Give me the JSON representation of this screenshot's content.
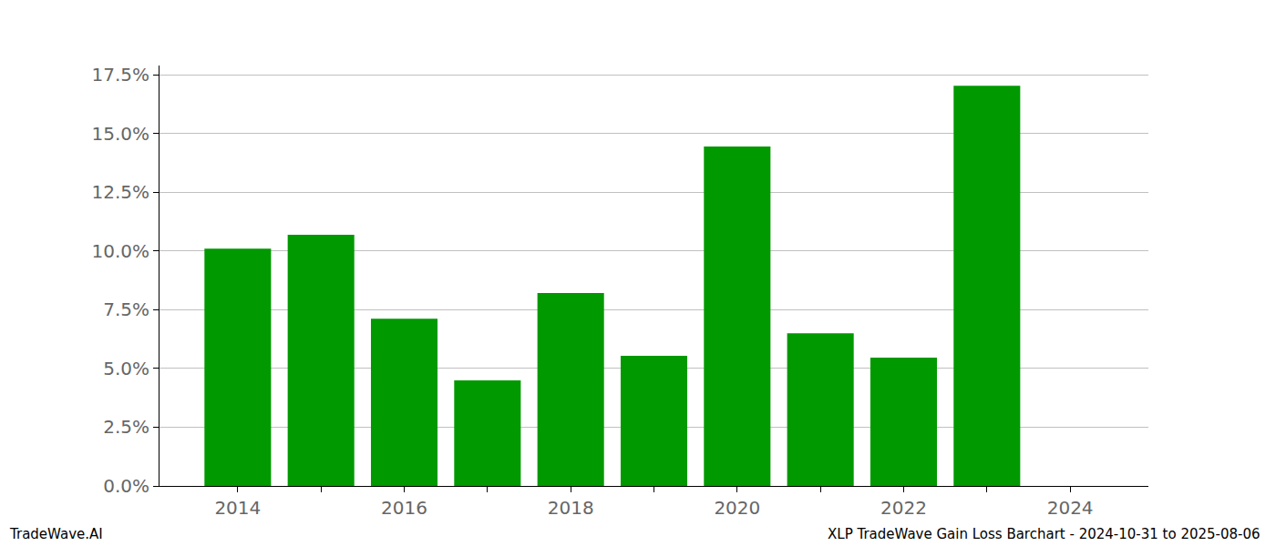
{
  "chart_data": {
    "type": "bar",
    "x": [
      2014,
      2015,
      2016,
      2017,
      2018,
      2019,
      2020,
      2021,
      2022,
      2023,
      2024
    ],
    "values": [
      10.1,
      10.69,
      7.12,
      4.49,
      8.21,
      5.54,
      14.44,
      6.5,
      5.46,
      17.03,
      0
    ],
    "color": "#009900",
    "xlim": [
      2013.06,
      2024.94
    ],
    "xticks": [
      2014,
      2016,
      2018,
      2020,
      2022,
      2024
    ],
    "ylim": [
      0,
      17.89
    ],
    "yticks": [
      {
        "value": 0,
        "label": "0.0%"
      },
      {
        "value": 2.5,
        "label": "2.5%"
      },
      {
        "value": 5,
        "label": "5.0%"
      },
      {
        "value": 7.5,
        "label": "7.5%"
      },
      {
        "value": 10,
        "label": "10.0%"
      },
      {
        "value": 12.5,
        "label": "12.5%"
      },
      {
        "value": 15,
        "label": "15.0%"
      },
      {
        "value": 17.5,
        "label": "17.5%"
      }
    ],
    "grid": true,
    "annotations": [
      "TradeWave.AI",
      "XLP TradeWave Gain Loss Barchart - 2024-10-31 to 2025-08-06"
    ]
  }
}
